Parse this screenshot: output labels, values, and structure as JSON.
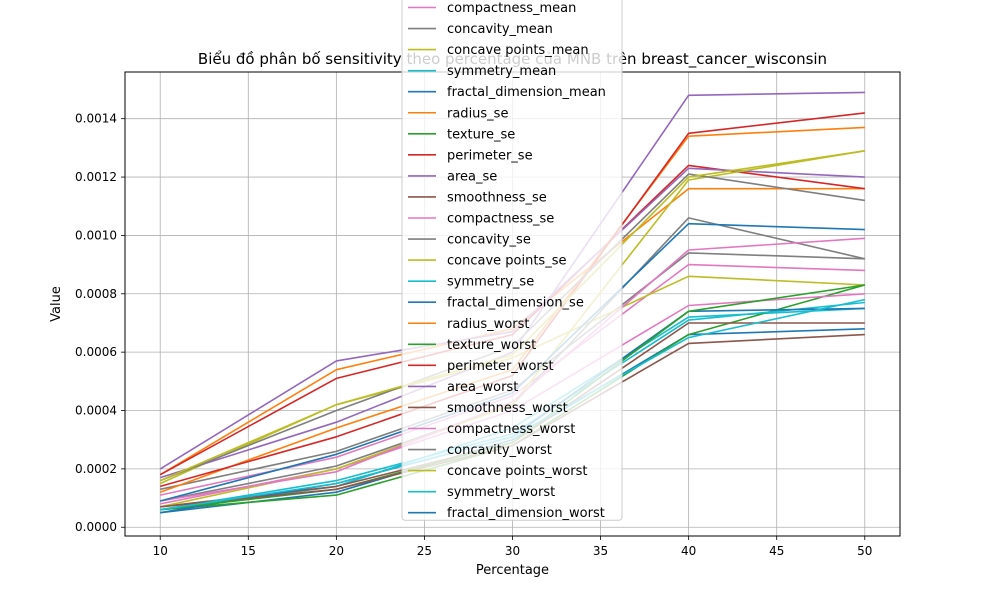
{
  "chart_data": {
    "type": "line",
    "title": "Biểu đồ phân bố sensitivity theo percentage của MNB trên breast_cancer_wisconsin",
    "xlabel": "Percentage",
    "ylabel": "Value",
    "x": [
      10,
      20,
      30,
      40,
      50
    ],
    "xlim": [
      8,
      52
    ],
    "ylim": [
      -3e-05,
      0.00156
    ],
    "xticks": [
      "10",
      "15",
      "20",
      "25",
      "30",
      "35",
      "40",
      "45",
      "50"
    ],
    "yticks": [
      "0.0000",
      "0.0002",
      "0.0004",
      "0.0006",
      "0.0008",
      "0.0010",
      "0.0012",
      "0.0014"
    ],
    "grid": true,
    "legend_position": "upper-center",
    "series": [
      {
        "name": "compactness_mean",
        "color": "#e377c2",
        "values": [
          0.00011,
          0.00024,
          0.00045,
          0.0009,
          0.00088
        ]
      },
      {
        "name": "concavity_mean",
        "color": "#7f7f7f",
        "values": [
          0.00013,
          0.00026,
          0.00047,
          0.00094,
          0.00092
        ]
      },
      {
        "name": "concave points_mean",
        "color": "#bcbd22",
        "values": [
          0.00015,
          0.00042,
          0.00058,
          0.00086,
          0.00083
        ]
      },
      {
        "name": "symmetry_mean",
        "color": "#17becf",
        "values": [
          6e-05,
          0.00014,
          0.00034,
          0.00072,
          0.00075
        ]
      },
      {
        "name": "fractal_dimension_mean",
        "color": "#1f77b4",
        "values": [
          5e-05,
          0.00012,
          0.0003,
          0.00066,
          0.00068
        ]
      },
      {
        "name": "radius_se",
        "color": "#ff7f0e",
        "values": [
          0.00018,
          0.00054,
          0.00068,
          0.00116,
          0.00116
        ]
      },
      {
        "name": "texture_se",
        "color": "#2ca02c",
        "values": [
          6e-05,
          0.00011,
          0.00028,
          0.00066,
          0.00083
        ]
      },
      {
        "name": "perimeter_se",
        "color": "#d62728",
        "values": [
          0.00018,
          0.00051,
          0.00066,
          0.00124,
          0.00116
        ]
      },
      {
        "name": "area_se",
        "color": "#9467bd",
        "values": [
          0.0002,
          0.00057,
          0.00067,
          0.00123,
          0.0012
        ]
      },
      {
        "name": "smoothness_se",
        "color": "#8c564b",
        "values": [
          7e-05,
          0.00014,
          0.00029,
          0.0007,
          0.0007
        ]
      },
      {
        "name": "compactness_se",
        "color": "#e377c2",
        "values": [
          8e-05,
          0.0002,
          0.0004,
          0.00076,
          0.0008
        ]
      },
      {
        "name": "concavity_se",
        "color": "#7f7f7f",
        "values": [
          9e-05,
          0.00021,
          0.00042,
          0.00106,
          0.00092
        ]
      },
      {
        "name": "concave points_se",
        "color": "#bcbd22",
        "values": [
          7e-05,
          0.0002,
          0.00042,
          0.00119,
          0.00129
        ]
      },
      {
        "name": "symmetry_se",
        "color": "#17becf",
        "values": [
          6e-05,
          0.00016,
          0.00032,
          0.00071,
          0.00077
        ]
      },
      {
        "name": "fractal_dimension_se",
        "color": "#1f77b4",
        "values": [
          5e-05,
          0.00015,
          0.00031,
          0.00074,
          0.00075
        ]
      },
      {
        "name": "radius_worst",
        "color": "#ff7f0e",
        "values": [
          0.00012,
          0.00034,
          0.00054,
          0.00134,
          0.00137
        ]
      },
      {
        "name": "texture_worst",
        "color": "#2ca02c",
        "values": [
          6e-05,
          0.00013,
          0.00029,
          0.00074,
          0.00083
        ]
      },
      {
        "name": "perimeter_worst",
        "color": "#d62728",
        "values": [
          0.00014,
          0.00031,
          0.00052,
          0.00135,
          0.00142
        ]
      },
      {
        "name": "area_worst",
        "color": "#9467bd",
        "values": [
          0.00017,
          0.00036,
          0.0006,
          0.00148,
          0.00149
        ]
      },
      {
        "name": "smoothness_worst",
        "color": "#8c564b",
        "values": [
          7e-05,
          0.00013,
          0.00028,
          0.00063,
          0.00066
        ]
      },
      {
        "name": "compactness_worst",
        "color": "#e377c2",
        "values": [
          9e-05,
          0.00019,
          0.00043,
          0.00095,
          0.00099
        ]
      },
      {
        "name": "concavity_worst",
        "color": "#7f7f7f",
        "values": [
          0.00016,
          0.0004,
          0.00062,
          0.00121,
          0.00112
        ]
      },
      {
        "name": "concave points_worst",
        "color": "#bcbd22",
        "values": [
          0.00016,
          0.00042,
          0.00059,
          0.0012,
          0.00129
        ]
      },
      {
        "name": "symmetry_worst",
        "color": "#17becf",
        "values": [
          6e-05,
          0.00015,
          0.00031,
          0.00065,
          0.00078
        ]
      },
      {
        "name": "fractal_dimension_worst",
        "color": "#1f77b4",
        "values": [
          9e-05,
          0.00025,
          0.00046,
          0.00104,
          0.00102
        ]
      }
    ]
  }
}
